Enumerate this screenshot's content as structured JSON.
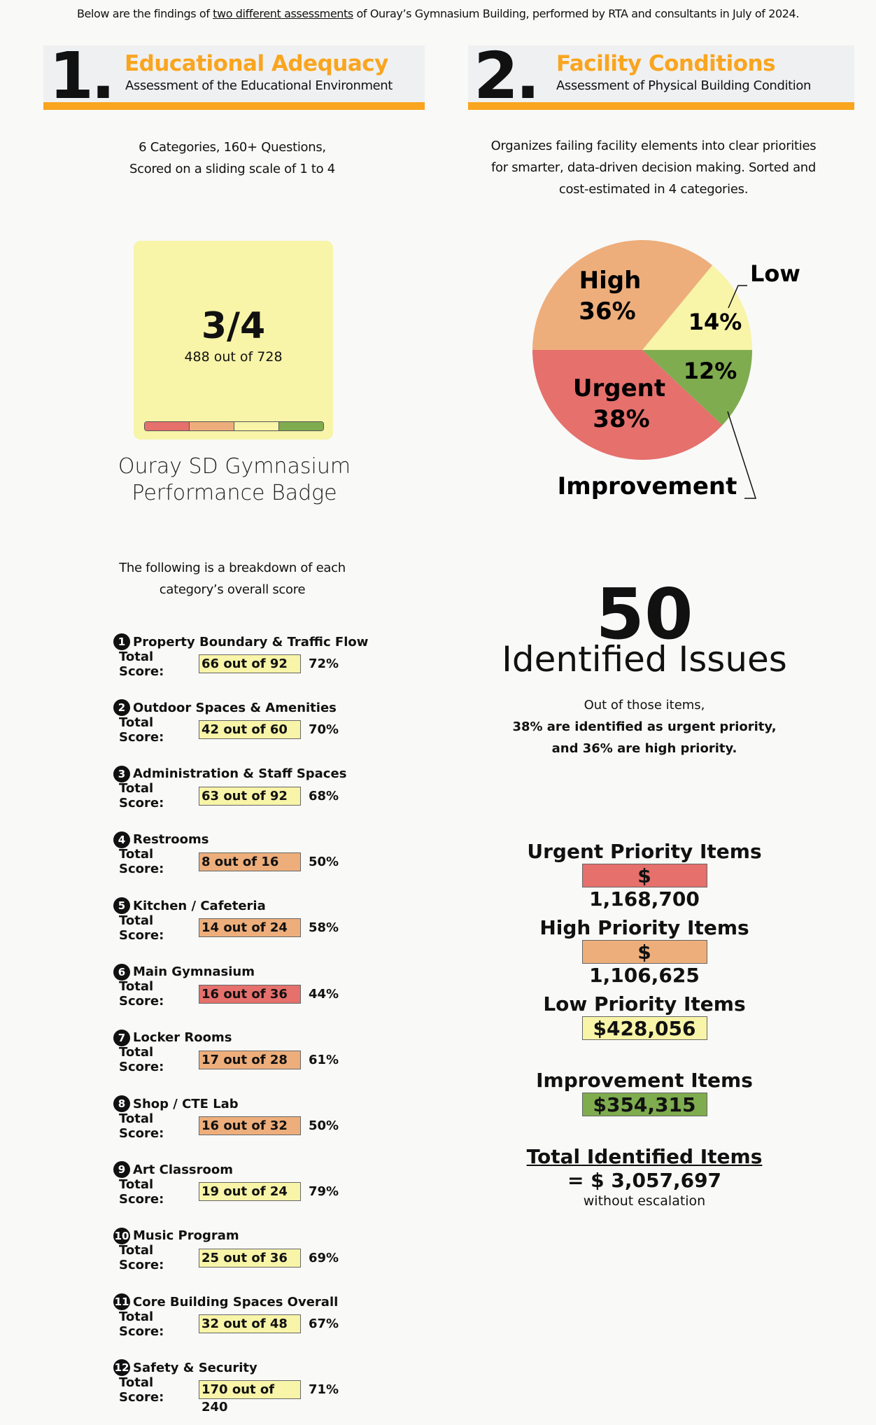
{
  "intro": {
    "before": "Below are the findings of ",
    "link": "two different assessments",
    "after": " of Ouray’s Gymnasium Building, performed by RTA and consultants in July of 2024."
  },
  "section1": {
    "number": "1.",
    "title": "Educational Adequacy",
    "subtitle": "Assessment of the Educational Environment",
    "desc_line1": "6 Categories, 160+ Questions,",
    "desc_line2": "Scored on a sliding scale of 1 to 4"
  },
  "section2": {
    "number": "2.",
    "title": "Facility Conditions",
    "subtitle": "Assessment of Physical Building Condition",
    "desc_line1": "Organizes failing facility elements into clear priorities",
    "desc_line2": "for smarter, data-driven decision making. Sorted and",
    "desc_line3": "cost-estimated in 4 categories."
  },
  "badge": {
    "score": "3/4",
    "points": "488 out of 728",
    "scale_colors": [
      "#e5706c",
      "#edae7b",
      "#f8f4a8",
      "#7fac4f"
    ],
    "caption_line1": "Ouray SD Gymnasium",
    "caption_line2": "Performance Badge"
  },
  "breakdown": {
    "line1": "The following is a breakdown of each",
    "line2": "category’s overall score",
    "score_label": "Total Score:"
  },
  "categories": [
    {
      "num": "1",
      "name": "Property Boundary & Traffic Flow",
      "score": "66 out of 92",
      "pct": "72%",
      "color": "#f8f4a8"
    },
    {
      "num": "2",
      "name": "Outdoor Spaces & Amenities",
      "score": "42 out of 60",
      "pct": "70%",
      "color": "#f8f4a8"
    },
    {
      "num": "3",
      "name": "Administration & Staff Spaces",
      "score": "63 out of 92",
      "pct": "68%",
      "color": "#f8f4a8"
    },
    {
      "num": "4",
      "name": "Restrooms",
      "score": "8 out of 16",
      "pct": "50%",
      "color": "#edae7b"
    },
    {
      "num": "5",
      "name": "Kitchen / Cafeteria",
      "score": "14 out of 24",
      "pct": "58%",
      "color": "#edae7b"
    },
    {
      "num": "6",
      "name": "Main Gymnasium",
      "score": "16 out of 36",
      "pct": "44%",
      "color": "#e5706c"
    },
    {
      "num": "7",
      "name": "Locker Rooms",
      "score": "17 out of 28",
      "pct": "61%",
      "color": "#edae7b"
    },
    {
      "num": "8",
      "name": "Shop / CTE Lab",
      "score": "16 out of 32",
      "pct": "50%",
      "color": "#edae7b"
    },
    {
      "num": "9",
      "name": "Art Classroom",
      "score": "19 out of 24",
      "pct": "79%",
      "color": "#f8f4a8"
    },
    {
      "num": "10",
      "name": "Music Program",
      "score": "25 out of 36",
      "pct": "69%",
      "color": "#f8f4a8"
    },
    {
      "num": "11",
      "name": "Core Building Spaces Overall",
      "score": "32 out of 48",
      "pct": "67%",
      "color": "#f8f4a8"
    },
    {
      "num": "12",
      "name": "Safety & Security",
      "score": "170 out of 240",
      "pct": "71%",
      "color": "#f8f4a8"
    }
  ],
  "chart_data": {
    "type": "pie",
    "slices": [
      {
        "name": "Low",
        "value": 14,
        "label": "14%",
        "color": "#f8f4a8"
      },
      {
        "name": "High",
        "value": 36,
        "label": "36%",
        "color": "#edae7b"
      },
      {
        "name": "Urgent",
        "value": 38,
        "label": "38%",
        "color": "#e5706c"
      },
      {
        "name": "Improvement",
        "value": 12,
        "label": "12%",
        "color": "#7fac4f"
      }
    ]
  },
  "issues": {
    "count": "50",
    "label": "Identified Issues",
    "line1": "Out of those items,",
    "line2": "38% are identified as urgent priority,",
    "line3": "and 36% are high priority."
  },
  "priorities": [
    {
      "title": "Urgent Priority Items",
      "value": "$ 1,168,700",
      "color": "#e5706c"
    },
    {
      "title": "High Priority Items",
      "value": "$ 1,106,625",
      "color": "#edae7b"
    },
    {
      "title": "Low Priority Items",
      "value": "$428,056",
      "color": "#f8f4a8"
    },
    {
      "title": "Improvement Items",
      "value": "$354,315",
      "color": "#7fac4f"
    }
  ],
  "total": {
    "title": "Total Identified Items",
    "value": "= $ 3,057,697",
    "note": "without escalation"
  }
}
